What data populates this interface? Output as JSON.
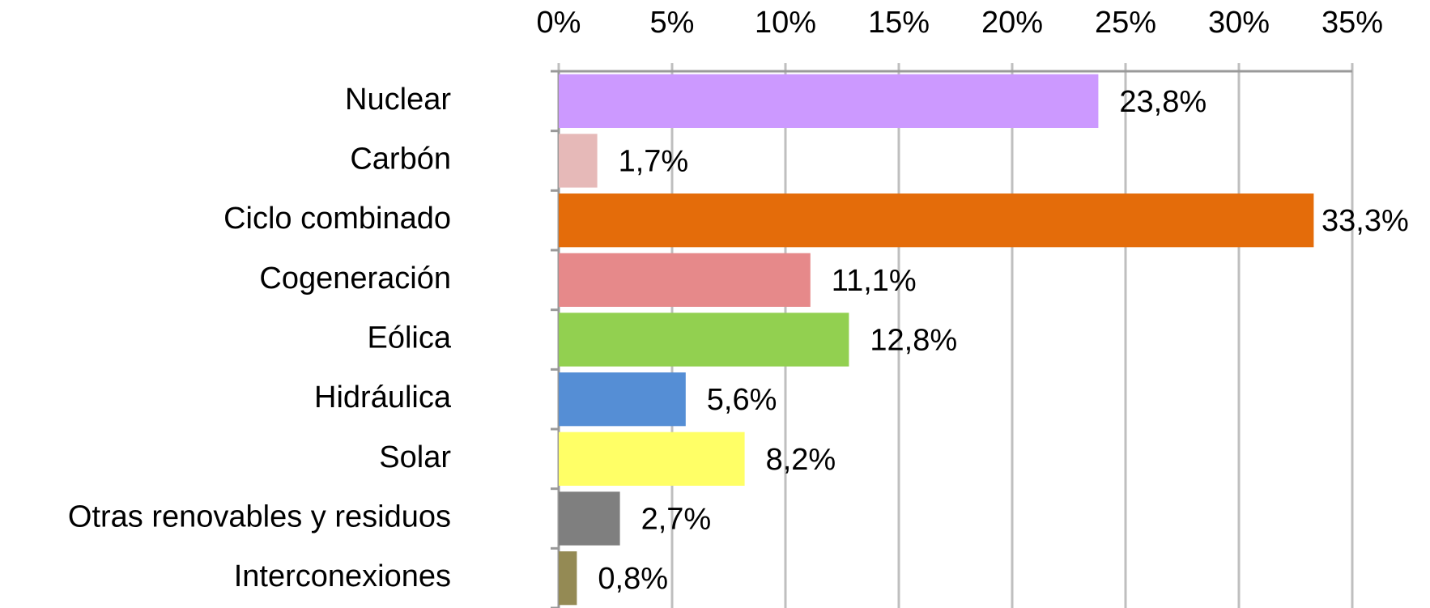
{
  "chart_data": {
    "type": "bar",
    "orientation": "horizontal",
    "categories": [
      "Nuclear",
      "Carbón",
      "Ciclo combinado",
      "Cogeneración",
      "Eólica",
      "Hidráulica",
      "Solar",
      "Otras renovables y residuos",
      "Interconexiones"
    ],
    "values": [
      23.8,
      1.7,
      33.3,
      11.1,
      12.8,
      5.6,
      8.2,
      2.7,
      0.8
    ],
    "value_labels": [
      "23,8%",
      "1,7%",
      "33,3%",
      "11,1%",
      "12,8%",
      "5,6%",
      "8,2%",
      "2,7%",
      "0,8%"
    ],
    "colors": [
      "#cc99ff",
      "#e6b9b8",
      "#e46c0a",
      "#e6898a",
      "#92d050",
      "#558ed5",
      "#ffff66",
      "#7f7f7f",
      "#948a54"
    ],
    "xlim": [
      0,
      35
    ],
    "xticks": [
      {
        "value": 0,
        "label": "0%"
      },
      {
        "value": 5,
        "label": "5%"
      },
      {
        "value": 10,
        "label": "10%"
      },
      {
        "value": 15,
        "label": "15%"
      },
      {
        "value": 20,
        "label": "20%"
      },
      {
        "value": 25,
        "label": "25%"
      },
      {
        "value": 30,
        "label": "30%"
      },
      {
        "value": 35,
        "label": "35%"
      }
    ],
    "grid": true
  }
}
